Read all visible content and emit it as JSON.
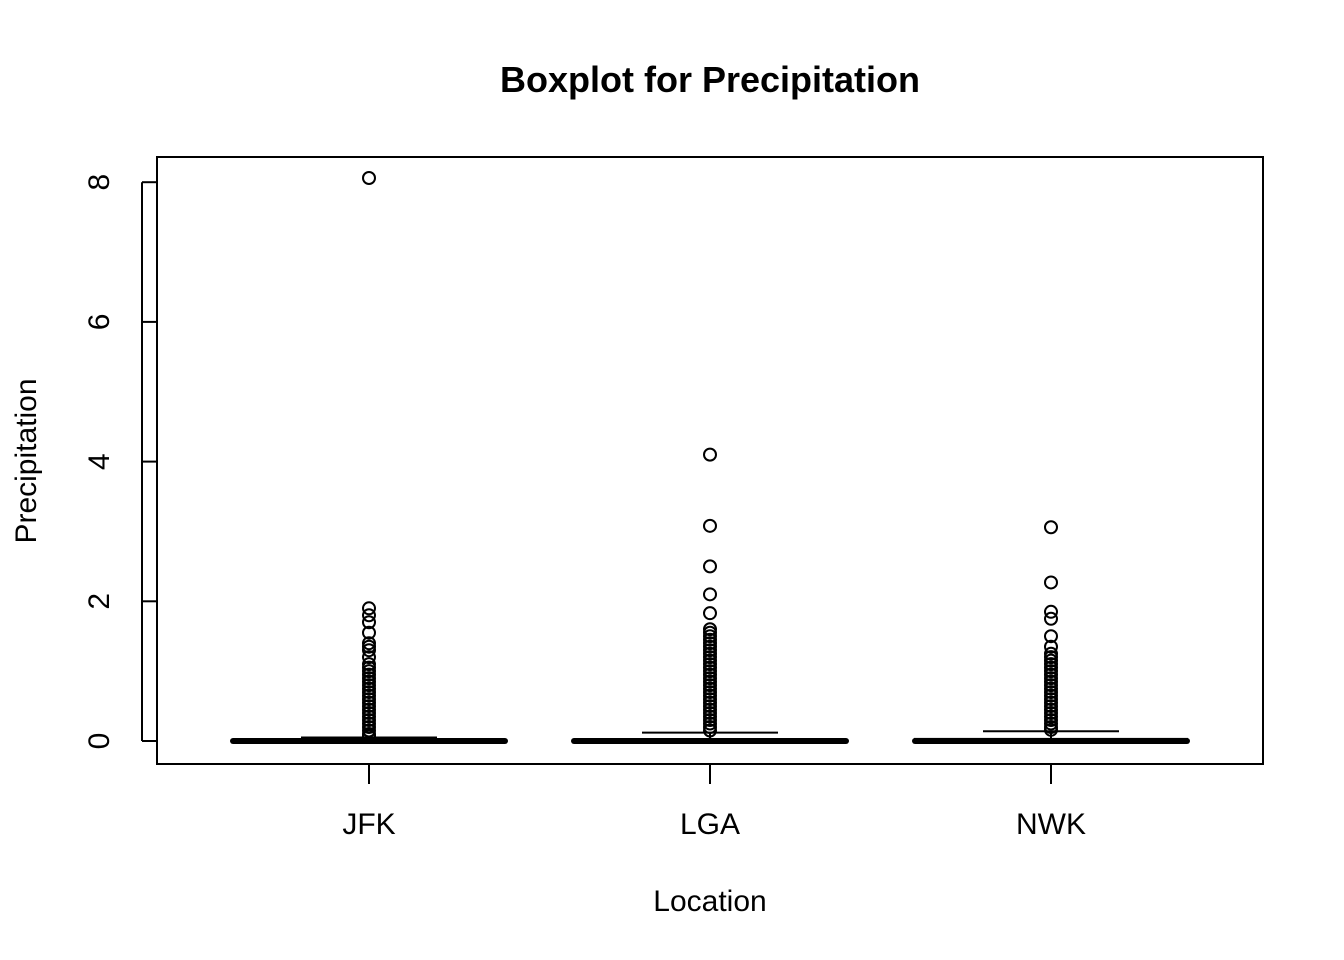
{
  "chart_data": {
    "type": "boxplot",
    "title": "Boxplot for Precipitation",
    "xlabel": "Location",
    "ylabel": "Precipitation",
    "ylim": [
      -0.32,
      8.38
    ],
    "yticks": [
      0,
      2,
      4,
      6,
      8
    ],
    "grid": false,
    "categories": [
      "JFK",
      "LGA",
      "NWK"
    ],
    "boxes": [
      {
        "name": "JFK",
        "min": 0,
        "q1": 0,
        "median": 0,
        "q3": 0.02,
        "max": 0.05,
        "outliers": [
          8.06,
          1.9,
          1.8,
          1.7,
          1.55,
          1.4,
          1.35,
          1.3,
          1.2,
          1.1,
          1.05,
          1.0,
          0.95,
          0.9,
          0.85,
          0.8,
          0.75,
          0.7,
          0.65,
          0.6,
          0.55,
          0.5,
          0.45,
          0.4,
          0.35,
          0.3,
          0.25,
          0.2,
          0.15,
          0.1,
          0.08,
          0.06
        ]
      },
      {
        "name": "LGA",
        "min": 0,
        "q1": 0,
        "median": 0,
        "q3": 0.02,
        "max": 0.12,
        "outliers": [
          4.1,
          3.08,
          2.5,
          2.1,
          1.83,
          1.6,
          1.55,
          1.5,
          1.45,
          1.4,
          1.35,
          1.3,
          1.25,
          1.2,
          1.15,
          1.1,
          1.05,
          1.0,
          0.95,
          0.9,
          0.85,
          0.8,
          0.75,
          0.7,
          0.65,
          0.6,
          0.55,
          0.5,
          0.45,
          0.4,
          0.35,
          0.3,
          0.25,
          0.2,
          0.15
        ]
      },
      {
        "name": "NWK",
        "min": 0,
        "q1": 0,
        "median": 0,
        "q3": 0.03,
        "max": 0.14,
        "outliers": [
          3.06,
          2.27,
          1.85,
          1.75,
          1.5,
          1.35,
          1.25,
          1.2,
          1.15,
          1.1,
          1.05,
          1.0,
          0.95,
          0.9,
          0.85,
          0.8,
          0.75,
          0.7,
          0.65,
          0.6,
          0.55,
          0.5,
          0.45,
          0.4,
          0.35,
          0.3,
          0.25,
          0.2,
          0.16
        ]
      }
    ]
  }
}
